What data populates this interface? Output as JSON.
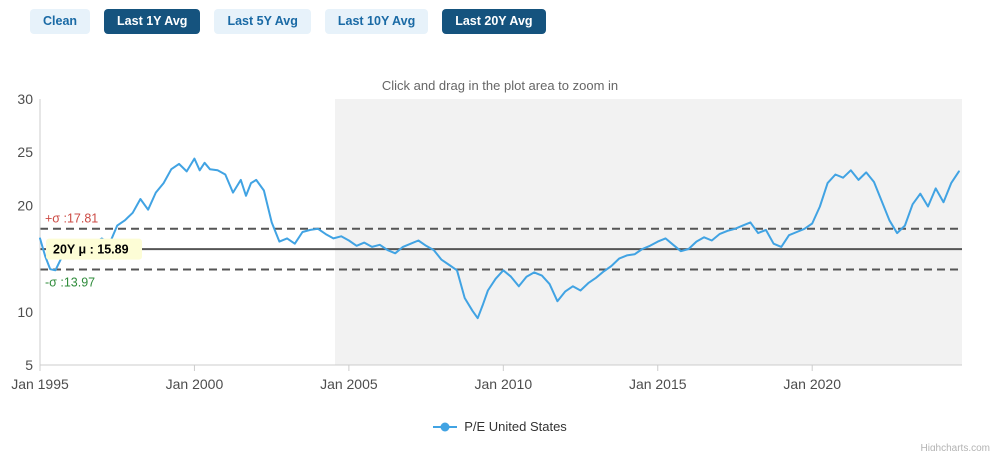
{
  "toolbar": {
    "buttons": [
      {
        "label": "Clean",
        "active": false
      },
      {
        "label": "Last 1Y Avg",
        "active": true
      },
      {
        "label": "Last 5Y Avg",
        "active": false
      },
      {
        "label": "Last 10Y Avg",
        "active": false
      },
      {
        "label": "Last 20Y Avg",
        "active": true
      }
    ]
  },
  "colors": {
    "button_active_bg": "#15537e",
    "button_inactive_bg": "#e7f2fa",
    "button_inactive_text": "#1a6aa5",
    "series_blue": "#41a3e3",
    "plot_band_gray": "#f2f2f2",
    "sigma_plus_red": "#cc4a44",
    "sigma_minus_green": "#2e8b3a",
    "mean_label_bg": "#fdfdd6"
  },
  "chart_data": {
    "type": "line",
    "title": "Click and drag in the plot area to zoom in",
    "xlim": [
      1995,
      2024.85
    ],
    "ylim": [
      5,
      30
    ],
    "x_ticks": [
      {
        "value": 1995,
        "label": "Jan 1995"
      },
      {
        "value": 2000,
        "label": "Jan 2000"
      },
      {
        "value": 2005,
        "label": "Jan 2005"
      },
      {
        "value": 2010,
        "label": "Jan 2010"
      },
      {
        "value": 2015,
        "label": "Jan 2015"
      },
      {
        "value": 2020,
        "label": "Jan 2020"
      }
    ],
    "y_ticks": [
      5,
      10,
      20,
      25,
      30
    ],
    "plot_band": {
      "from": 2004.55,
      "to": 2024.85,
      "color": "#f2f2f2"
    },
    "reference_lines": [
      {
        "id": "plus-sigma",
        "value": 17.81,
        "label": "+σ :17.81",
        "style": "dashed",
        "line_color": "#555555",
        "label_color": "#cc4a44",
        "label_position": "above"
      },
      {
        "id": "mean-20y",
        "value": 15.89,
        "label": "20Y μ : 15.89",
        "style": "solid",
        "line_color": "#555555",
        "label_color": "#000000",
        "label_bg": "#fdfdd6",
        "label_position": "center"
      },
      {
        "id": "minus-sigma",
        "value": 13.97,
        "label": "-σ :13.97",
        "style": "dashed",
        "line_color": "#555555",
        "label_color": "#2e8b3a",
        "label_position": "below"
      }
    ],
    "series": [
      {
        "name": "P/E United States",
        "color": "#41a3e3",
        "points": [
          [
            1995.0,
            16.9
          ],
          [
            1995.17,
            15.2
          ],
          [
            1995.33,
            14.0
          ],
          [
            1995.5,
            13.9
          ],
          [
            1995.75,
            15.4
          ],
          [
            1996.0,
            16.3
          ],
          [
            1996.25,
            15.6
          ],
          [
            1996.5,
            15.3
          ],
          [
            1996.75,
            16.4
          ],
          [
            1997.0,
            16.9
          ],
          [
            1997.25,
            16.4
          ],
          [
            1997.5,
            18.1
          ],
          [
            1997.75,
            18.6
          ],
          [
            1998.0,
            19.3
          ],
          [
            1998.25,
            20.6
          ],
          [
            1998.5,
            19.6
          ],
          [
            1998.75,
            21.2
          ],
          [
            1999.0,
            22.1
          ],
          [
            1999.25,
            23.4
          ],
          [
            1999.5,
            23.9
          ],
          [
            1999.75,
            23.2
          ],
          [
            2000.0,
            24.4
          ],
          [
            2000.17,
            23.3
          ],
          [
            2000.33,
            24.0
          ],
          [
            2000.5,
            23.4
          ],
          [
            2000.75,
            23.3
          ],
          [
            2001.0,
            22.9
          ],
          [
            2001.25,
            21.2
          ],
          [
            2001.5,
            22.4
          ],
          [
            2001.67,
            20.9
          ],
          [
            2001.83,
            22.1
          ],
          [
            2002.0,
            22.4
          ],
          [
            2002.25,
            21.4
          ],
          [
            2002.5,
            18.4
          ],
          [
            2002.75,
            16.6
          ],
          [
            2003.0,
            16.9
          ],
          [
            2003.25,
            16.4
          ],
          [
            2003.5,
            17.5
          ],
          [
            2003.75,
            17.7
          ],
          [
            2004.0,
            17.8
          ],
          [
            2004.25,
            17.3
          ],
          [
            2004.5,
            16.9
          ],
          [
            2004.75,
            17.1
          ],
          [
            2005.0,
            16.7
          ],
          [
            2005.25,
            16.2
          ],
          [
            2005.5,
            16.5
          ],
          [
            2005.75,
            16.1
          ],
          [
            2006.0,
            16.3
          ],
          [
            2006.25,
            15.8
          ],
          [
            2006.5,
            15.5
          ],
          [
            2006.75,
            16.1
          ],
          [
            2007.0,
            16.4
          ],
          [
            2007.25,
            16.7
          ],
          [
            2007.5,
            16.2
          ],
          [
            2007.75,
            15.8
          ],
          [
            2008.0,
            14.9
          ],
          [
            2008.25,
            14.4
          ],
          [
            2008.5,
            13.9
          ],
          [
            2008.75,
            11.3
          ],
          [
            2009.0,
            10.1
          ],
          [
            2009.17,
            9.4
          ],
          [
            2009.33,
            10.6
          ],
          [
            2009.5,
            12.0
          ],
          [
            2009.75,
            13.1
          ],
          [
            2010.0,
            13.9
          ],
          [
            2010.25,
            13.3
          ],
          [
            2010.5,
            12.4
          ],
          [
            2010.75,
            13.3
          ],
          [
            2011.0,
            13.7
          ],
          [
            2011.25,
            13.4
          ],
          [
            2011.5,
            12.6
          ],
          [
            2011.75,
            11.0
          ],
          [
            2012.0,
            11.9
          ],
          [
            2012.25,
            12.4
          ],
          [
            2012.5,
            12.0
          ],
          [
            2012.75,
            12.7
          ],
          [
            2013.0,
            13.2
          ],
          [
            2013.25,
            13.8
          ],
          [
            2013.5,
            14.3
          ],
          [
            2013.75,
            15.0
          ],
          [
            2014.0,
            15.3
          ],
          [
            2014.25,
            15.4
          ],
          [
            2014.5,
            15.9
          ],
          [
            2014.75,
            16.2
          ],
          [
            2015.0,
            16.6
          ],
          [
            2015.25,
            16.9
          ],
          [
            2015.5,
            16.3
          ],
          [
            2015.75,
            15.7
          ],
          [
            2016.0,
            15.9
          ],
          [
            2016.25,
            16.6
          ],
          [
            2016.5,
            17.0
          ],
          [
            2016.75,
            16.7
          ],
          [
            2017.0,
            17.3
          ],
          [
            2017.25,
            17.6
          ],
          [
            2017.5,
            17.8
          ],
          [
            2017.75,
            18.1
          ],
          [
            2018.0,
            18.4
          ],
          [
            2018.25,
            17.4
          ],
          [
            2018.5,
            17.7
          ],
          [
            2018.75,
            16.4
          ],
          [
            2019.0,
            16.1
          ],
          [
            2019.25,
            17.2
          ],
          [
            2019.5,
            17.5
          ],
          [
            2019.75,
            17.8
          ],
          [
            2020.0,
            18.3
          ],
          [
            2020.25,
            19.9
          ],
          [
            2020.5,
            22.1
          ],
          [
            2020.75,
            22.9
          ],
          [
            2021.0,
            22.6
          ],
          [
            2021.25,
            23.3
          ],
          [
            2021.5,
            22.4
          ],
          [
            2021.75,
            23.1
          ],
          [
            2022.0,
            22.2
          ],
          [
            2022.25,
            20.4
          ],
          [
            2022.5,
            18.6
          ],
          [
            2022.75,
            17.4
          ],
          [
            2023.0,
            18.1
          ],
          [
            2023.25,
            20.1
          ],
          [
            2023.5,
            21.1
          ],
          [
            2023.75,
            19.9
          ],
          [
            2024.0,
            21.6
          ],
          [
            2024.25,
            20.3
          ],
          [
            2024.5,
            22.1
          ],
          [
            2024.75,
            23.2
          ]
        ]
      }
    ],
    "legend": {
      "label": "P/E United States"
    },
    "credits": "Highcharts.com"
  }
}
